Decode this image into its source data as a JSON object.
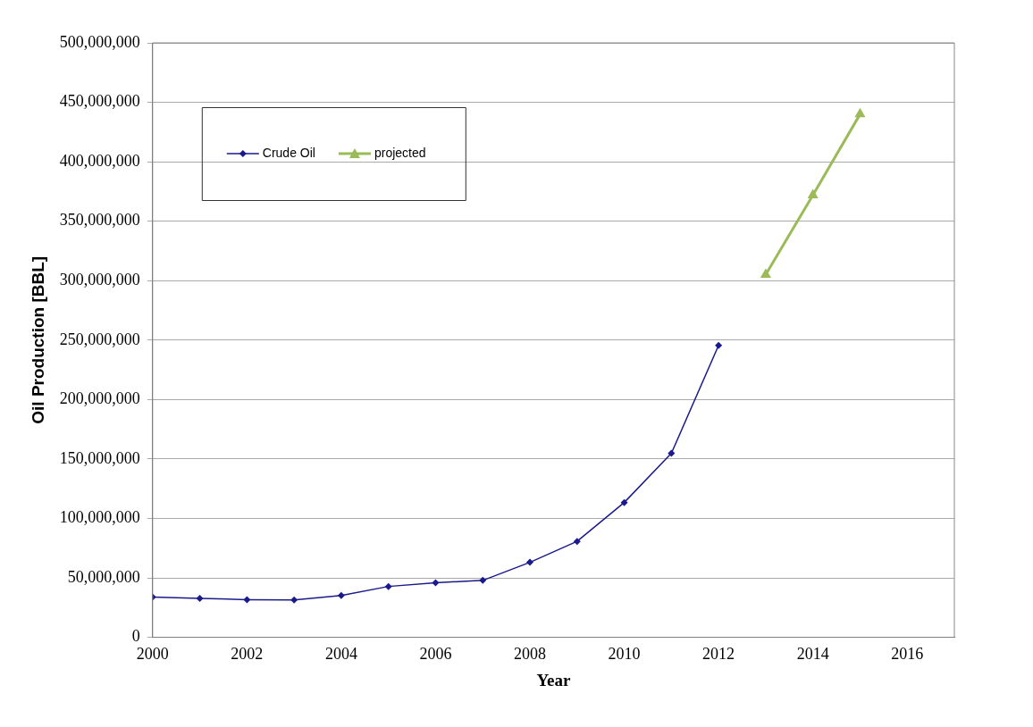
{
  "chart_data": {
    "type": "line",
    "xlabel": "Year",
    "ylabel": "Oil Production [BBL]",
    "series": [
      {
        "name": "Crude Oil",
        "color": "#1a1a8c",
        "marker": "diamond",
        "x": [
          2000,
          2001,
          2002,
          2003,
          2004,
          2005,
          2006,
          2007,
          2008,
          2009,
          2010,
          2011,
          2012
        ],
        "values": [
          33800000,
          32800000,
          31700000,
          31400000,
          35200000,
          42800000,
          45900000,
          47900000,
          63100000,
          80700000,
          113400000,
          154800000,
          245500000
        ]
      },
      {
        "name": "projected",
        "color": "#9bbb59",
        "marker": "triangle",
        "x": [
          2013,
          2014,
          2015
        ],
        "values": [
          305000000,
          372000000,
          440000000
        ]
      }
    ],
    "xlim": [
      2000,
      2017
    ],
    "xticks": [
      2000,
      2002,
      2004,
      2006,
      2008,
      2010,
      2012,
      2014,
      2016
    ],
    "ylim": [
      0,
      500000000
    ],
    "yticks": [
      0,
      {
        "value": 50000000,
        "label": "50,000,000"
      },
      {
        "value": 100000000,
        "label": "100,000,000"
      },
      {
        "value": 150000000,
        "label": "150,000,000"
      },
      {
        "value": 200000000,
        "label": "200,000,000"
      },
      {
        "value": 250000000,
        "label": "250,000,000"
      },
      {
        "value": 300000000,
        "label": "300,000,000"
      },
      {
        "value": 350000000,
        "label": "350,000,000"
      },
      {
        "value": 400000000,
        "label": "400,000,000"
      },
      {
        "value": 450000000,
        "label": "450,000,000"
      },
      {
        "value": 500000000,
        "label": "500,000,000"
      }
    ],
    "grid": "y",
    "legend": "top left"
  }
}
